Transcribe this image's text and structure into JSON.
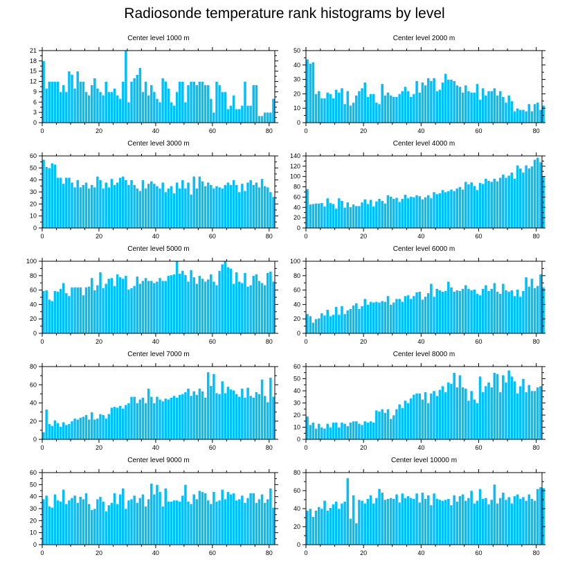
{
  "figure": {
    "title": "Radiosonde temperature rank histograms by level"
  },
  "colors": {
    "bar": "#00bfff",
    "bar_edge": "#ffffff",
    "axis": "#000000"
  },
  "chart_data": [
    {
      "type": "bar",
      "title": "Center level 1000 m",
      "xlim": [
        0,
        82
      ],
      "ylim": [
        0,
        21
      ],
      "xticks": [
        0,
        20,
        40,
        60,
        80
      ],
      "yticks": [
        0,
        3,
        6,
        9,
        12,
        15,
        18,
        21
      ],
      "values": [
        18,
        10,
        12,
        12,
        12,
        12,
        9,
        11,
        9,
        15,
        14,
        10,
        15,
        12,
        12,
        9,
        8,
        11,
        13,
        10,
        9,
        8,
        12,
        9,
        9,
        10,
        8,
        7,
        12,
        21,
        6,
        12,
        13,
        14,
        16,
        9,
        12,
        8,
        11,
        9,
        7,
        6,
        13,
        12,
        10,
        6,
        5,
        9,
        12,
        12,
        6,
        11,
        12,
        12,
        11,
        12,
        12,
        11,
        11,
        7,
        3,
        12,
        11,
        9,
        9,
        4,
        5,
        8,
        4,
        4,
        5,
        12,
        5,
        5,
        11,
        11,
        2,
        2,
        3,
        3,
        3,
        7
      ]
    },
    {
      "type": "bar",
      "title": "Center level 2000 m",
      "xlim": [
        0,
        82
      ],
      "ylim": [
        0,
        50
      ],
      "xticks": [
        0,
        20,
        40,
        60,
        80
      ],
      "yticks": [
        0,
        10,
        20,
        30,
        40,
        50
      ],
      "values": [
        44,
        41,
        42,
        20,
        22,
        17,
        17,
        21,
        20,
        17,
        23,
        21,
        24,
        13,
        22,
        12,
        14,
        19,
        22,
        24,
        28,
        18,
        20,
        20,
        14,
        13,
        27,
        19,
        21,
        19,
        18,
        18,
        20,
        22,
        25,
        22,
        18,
        20,
        29,
        21,
        28,
        26,
        31,
        29,
        31,
        22,
        23,
        28,
        34,
        30,
        30,
        29,
        26,
        25,
        21,
        26,
        22,
        21,
        21,
        27,
        16,
        24,
        19,
        22,
        22,
        24,
        19,
        22,
        18,
        14,
        19,
        15,
        8,
        10,
        9,
        9,
        8,
        13,
        8,
        13,
        14,
        9,
        12
      ]
    },
    {
      "type": "bar",
      "title": "Center level 3000 m",
      "xlim": [
        0,
        82
      ],
      "ylim": [
        0,
        60
      ],
      "xticks": [
        0,
        20,
        40,
        60,
        80
      ],
      "yticks": [
        0,
        10,
        20,
        30,
        40,
        50,
        60
      ],
      "values": [
        57,
        51,
        50,
        54,
        53,
        42,
        42,
        37,
        42,
        42,
        38,
        34,
        40,
        34,
        36,
        38,
        33,
        36,
        34,
        43,
        40,
        33,
        38,
        34,
        41,
        36,
        38,
        42,
        43,
        40,
        36,
        40,
        36,
        33,
        31,
        40,
        33,
        37,
        39,
        37,
        35,
        33,
        38,
        30,
        33,
        35,
        29,
        38,
        33,
        40,
        33,
        38,
        28,
        43,
        33,
        43,
        39,
        35,
        38,
        36,
        33,
        35,
        34,
        33,
        36,
        38,
        36,
        40,
        36,
        30,
        37,
        31,
        38,
        40,
        36,
        38,
        34,
        41,
        35,
        34,
        30,
        26
      ]
    },
    {
      "type": "bar",
      "title": "Center level 4000 m",
      "xlim": [
        0,
        82
      ],
      "ylim": [
        0,
        140
      ],
      "xticks": [
        0,
        20,
        40,
        60,
        80
      ],
      "yticks": [
        0,
        20,
        40,
        60,
        80,
        100,
        120,
        140
      ],
      "values": [
        76,
        46,
        47,
        48,
        48,
        49,
        42,
        58,
        49,
        47,
        38,
        58,
        53,
        40,
        50,
        41,
        46,
        43,
        43,
        50,
        56,
        47,
        55,
        42,
        52,
        57,
        53,
        48,
        64,
        61,
        57,
        59,
        51,
        57,
        65,
        58,
        61,
        60,
        64,
        62,
        56,
        60,
        64,
        58,
        70,
        66,
        68,
        74,
        70,
        72,
        75,
        72,
        77,
        80,
        75,
        90,
        85,
        89,
        82,
        74,
        88,
        86,
        96,
        92,
        90,
        96,
        91,
        98,
        104,
        98,
        102,
        108,
        96,
        122,
        116,
        108,
        122,
        116,
        120,
        133,
        137,
        128,
        100
      ]
    },
    {
      "type": "bar",
      "title": "Center level 5000 m",
      "xlim": [
        0,
        82
      ],
      "ylim": [
        0,
        100
      ],
      "xticks": [
        0,
        20,
        40,
        60,
        80
      ],
      "yticks": [
        0,
        20,
        40,
        60,
        80,
        100
      ],
      "values": [
        59,
        60,
        47,
        45,
        59,
        58,
        62,
        70,
        56,
        52,
        64,
        64,
        64,
        64,
        53,
        64,
        65,
        77,
        60,
        67,
        85,
        63,
        69,
        76,
        77,
        66,
        82,
        78,
        76,
        80,
        61,
        63,
        66,
        79,
        69,
        73,
        77,
        73,
        73,
        70,
        72,
        77,
        73,
        73,
        80,
        81,
        82,
        100,
        83,
        87,
        81,
        72,
        88,
        78,
        69,
        80,
        76,
        72,
        75,
        82,
        72,
        67,
        87,
        96,
        100,
        92,
        90,
        69,
        85,
        72,
        70,
        84,
        65,
        67,
        80,
        82,
        73,
        70,
        67,
        84,
        86,
        72
      ]
    },
    {
      "type": "bar",
      "title": "Center level 6000 m",
      "xlim": [
        0,
        82
      ],
      "ylim": [
        0,
        100
      ],
      "xticks": [
        0,
        20,
        40,
        60,
        80
      ],
      "yticks": [
        0,
        20,
        40,
        60,
        80,
        100
      ],
      "values": [
        27,
        24,
        15,
        20,
        21,
        28,
        25,
        33,
        24,
        26,
        37,
        26,
        38,
        27,
        32,
        34,
        39,
        42,
        34,
        38,
        48,
        40,
        44,
        43,
        44,
        43,
        45,
        44,
        52,
        40,
        43,
        48,
        48,
        44,
        52,
        53,
        48,
        52,
        57,
        58,
        47,
        51,
        56,
        69,
        51,
        62,
        60,
        58,
        59,
        72,
        64,
        58,
        60,
        59,
        62,
        67,
        62,
        60,
        61,
        55,
        53,
        62,
        67,
        59,
        62,
        70,
        58,
        55,
        69,
        60,
        58,
        60,
        52,
        61,
        51,
        59,
        78,
        65,
        76,
        63,
        66,
        82,
        64
      ]
    },
    {
      "type": "bar",
      "title": "Center level 7000 m",
      "xlim": [
        0,
        82
      ],
      "ylim": [
        0,
        80
      ],
      "xticks": [
        0,
        20,
        40,
        60,
        80
      ],
      "yticks": [
        0,
        20,
        40,
        60,
        80
      ],
      "values": [
        8,
        33,
        17,
        15,
        21,
        18,
        14,
        19,
        16,
        17,
        20,
        23,
        22,
        24,
        25,
        27,
        22,
        30,
        22,
        23,
        28,
        27,
        23,
        28,
        35,
        36,
        35,
        37,
        34,
        38,
        40,
        47,
        47,
        40,
        44,
        46,
        40,
        56,
        47,
        40,
        47,
        44,
        42,
        45,
        44,
        46,
        48,
        46,
        49,
        50,
        52,
        56,
        48,
        53,
        49,
        56,
        53,
        46,
        74,
        59,
        72,
        51,
        50,
        64,
        51,
        58,
        55,
        54,
        50,
        47,
        56,
        46,
        57,
        48,
        46,
        52,
        50,
        66,
        48,
        41,
        68,
        47
      ]
    },
    {
      "type": "bar",
      "title": "Center level 8000 m",
      "xlim": [
        0,
        82
      ],
      "ylim": [
        0,
        60
      ],
      "xticks": [
        0,
        20,
        40,
        60,
        80
      ],
      "yticks": [
        0,
        10,
        20,
        30,
        40,
        50,
        60
      ],
      "values": [
        19,
        12,
        14,
        9,
        13,
        10,
        9,
        13,
        10,
        14,
        14,
        10,
        14,
        13,
        11,
        14,
        15,
        15,
        13,
        12,
        15,
        14,
        15,
        14,
        24,
        23,
        25,
        22,
        25,
        17,
        20,
        25,
        29,
        26,
        32,
        30,
        34,
        37,
        38,
        38,
        33,
        39,
        30,
        38,
        40,
        36,
        41,
        44,
        39,
        47,
        46,
        55,
        43,
        53,
        43,
        42,
        32,
        40,
        33,
        30,
        52,
        39,
        44,
        47,
        43,
        55,
        54,
        39,
        53,
        47,
        57,
        52,
        48,
        38,
        44,
        50,
        39,
        45,
        40,
        40,
        43,
        44
      ]
    },
    {
      "type": "bar",
      "title": "Center level 9000 m",
      "xlim": [
        0,
        82
      ],
      "ylim": [
        0,
        60
      ],
      "xticks": [
        0,
        20,
        40,
        60,
        80
      ],
      "yticks": [
        0,
        10,
        20,
        30,
        40,
        50,
        60
      ],
      "values": [
        38,
        41,
        32,
        31,
        42,
        37,
        36,
        46,
        34,
        37,
        39,
        41,
        35,
        40,
        38,
        43,
        34,
        29,
        30,
        38,
        40,
        36,
        28,
        33,
        35,
        43,
        34,
        42,
        47,
        30,
        37,
        38,
        41,
        35,
        39,
        42,
        32,
        38,
        51,
        42,
        50,
        44,
        32,
        47,
        36,
        36,
        37,
        37,
        36,
        41,
        50,
        36,
        34,
        42,
        38,
        45,
        44,
        43,
        37,
        34,
        44,
        36,
        37,
        46,
        38,
        44,
        42,
        43,
        37,
        38,
        41,
        35,
        39,
        43,
        43,
        35,
        38,
        42,
        35,
        38,
        47,
        31
      ]
    },
    {
      "type": "bar",
      "title": "Center level 10000 m",
      "xlim": [
        0,
        82
      ],
      "ylim": [
        0,
        80
      ],
      "xticks": [
        0,
        20,
        40,
        60,
        80
      ],
      "yticks": [
        0,
        20,
        40,
        60,
        80
      ],
      "values": [
        38,
        40,
        31,
        38,
        42,
        40,
        49,
        38,
        41,
        45,
        48,
        40,
        46,
        48,
        74,
        29,
        55,
        24,
        50,
        49,
        46,
        51,
        55,
        46,
        52,
        62,
        58,
        50,
        51,
        52,
        51,
        56,
        47,
        57,
        52,
        54,
        52,
        51,
        57,
        47,
        58,
        51,
        55,
        44,
        57,
        51,
        50,
        49,
        50,
        51,
        44,
        55,
        48,
        54,
        56,
        49,
        52,
        60,
        46,
        49,
        62,
        51,
        52,
        45,
        50,
        67,
        46,
        52,
        58,
        50,
        53,
        46,
        54,
        56,
        51,
        53,
        49,
        56,
        51,
        49,
        62,
        64,
        63
      ]
    }
  ]
}
